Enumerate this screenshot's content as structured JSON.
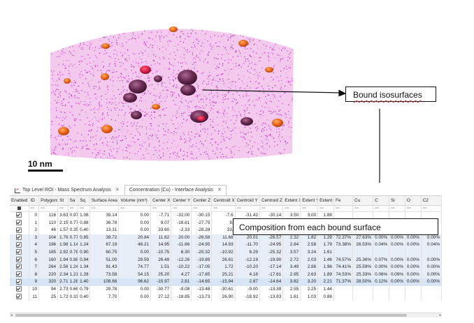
{
  "viz": {
    "scale_label": "10 nm",
    "callout_isosurfaces": "Bound isosurfaces",
    "callout_composition": "Composition from each bound surface",
    "colors": {
      "atoms": "#e04cd0",
      "orange": "#ee6a1a",
      "purple": "#6a2c54",
      "arrow": "#111111"
    }
  },
  "tabs": [
    {
      "label": "Top Level ROI - Mass Spectrum Analysis",
      "icon": "spectrum-chart-icon",
      "close": "✕",
      "active": false
    },
    {
      "label": "Concentration (Cu) - Interface Analysis",
      "icon": "",
      "close": "✕",
      "active": true
    }
  ],
  "table": {
    "columns": [
      "Enabled",
      "ID",
      "Polygons",
      "St",
      "Sa",
      "Sq",
      "Surface Area",
      "Volume (nm³)",
      "Center X",
      "Center Y",
      "Center Z",
      "Centroid X",
      "Centroid Y",
      "Centroid Z",
      "Extent X",
      "Extent Y",
      "Extent Z",
      "Fe",
      "Cu",
      "C",
      "Si",
      "O",
      "C2"
    ],
    "filter_symbol": "==",
    "rows": [
      [
        "",
        "0",
        "116",
        "3.63",
        "0.97",
        "1.08",
        "39.14",
        "0.00",
        "-7.71",
        "-32.00",
        "-30.15",
        "-7.6",
        "-31.42",
        "-30.14",
        "3.50",
        "3.00",
        "1.88",
        "",
        "",
        "",
        "",
        "",
        ""
      ],
      [
        "",
        "1",
        "110",
        "2.15",
        "0.77",
        "0.88",
        "36.78",
        "0.00",
        "9.07",
        "-18.61",
        "-27.75",
        "9.",
        "",
        "",
        "",
        "",
        "",
        "",
        "",
        "",
        "",
        "",
        ""
      ],
      [
        "",
        "2",
        "46",
        "1.57",
        "0.35",
        "0.40",
        "13.31",
        "0.00",
        "33.60",
        "-2.33",
        "-28.28",
        "33.",
        "",
        "",
        "",
        "",
        "",
        "",
        "",
        "",
        "",
        "",
        ""
      ],
      [
        "",
        "3",
        "104",
        "1.79",
        "0.77",
        "0.85",
        "39.72",
        "20.84",
        "11.62",
        "20.00",
        "-26.58",
        "11.68",
        "20.01",
        "-26.57",
        "2.32",
        "1.82",
        "1.29",
        "72.37%",
        "27.63%",
        "0.00%",
        "0.00%",
        "0.00%",
        "0.00%"
      ],
      [
        "",
        "4",
        "196",
        "1.98",
        "1.14",
        "1.24",
        "67.19",
        "48.21",
        "14.95",
        "-11.66",
        "-24.95",
        "14.93",
        "-11.70",
        "-24.95",
        "2.84",
        "2.58",
        "1.79",
        "73.38%",
        "26.53%",
        "0.04%",
        "0.00%",
        "0.00%",
        "0.04%"
      ],
      [
        "",
        "5",
        "185",
        "2.92",
        "0.78",
        "0.90",
        "60.75",
        "0.00",
        "-10.75",
        "6.30",
        "-25.32",
        "-10.92",
        "6.29",
        "-25.32",
        "3.57",
        "3.24",
        "1.61",
        "",
        "",
        "",
        "",
        "",
        ""
      ],
      [
        "",
        "6",
        "160",
        "1.94",
        "0.88",
        "0.94",
        "51.00",
        "29.59",
        "26.49",
        "-12.26",
        "-19.89",
        "26.61",
        "-12.19",
        "-19.90",
        "2.72",
        "2.03",
        "1.46",
        "74.57%",
        "25.36%",
        "0.07%",
        "0.00%",
        "0.00%",
        "0.00%"
      ],
      [
        "",
        "7",
        "264",
        "2.56",
        "1.24",
        "1.34",
        "91.43",
        "74.77",
        "1.51",
        "-10.22",
        "-17.05",
        "1.72",
        "-10.20",
        "-17.14",
        "3.49",
        "2.86",
        "1.96",
        "74.41%",
        "25.59%",
        "0.00%",
        "0.00%",
        "0.00%",
        "0.00%"
      ],
      [
        "",
        "8",
        "220",
        "2.34",
        "1.21",
        "1.28",
        "73.58",
        "54.15",
        "25.20",
        "4.27",
        "-17.65",
        "25.21",
        "4.18",
        "-17.61",
        "2.95",
        "2.63",
        "1.89",
        "74.53%",
        "25.33%",
        "0.06%",
        "0.09%",
        "0.00%",
        "0.00%"
      ],
      [
        "",
        "9",
        "320",
        "2.71",
        "1.28",
        "1.40",
        "108.66",
        "96.62",
        "-15.97",
        "2.81",
        "-14.65",
        "-15.94",
        "2.87",
        "-14.64",
        "3.82",
        "3.20",
        "2.21",
        "71.37%",
        "28.50%",
        "0.12%",
        "0.00%",
        "0.00%",
        "0.00%"
      ],
      [
        "",
        "10",
        "94",
        "2.73",
        "0.66",
        "0.79",
        "29.78",
        "0.00",
        "-30.77",
        "-9.08",
        "-13.48",
        "-30.61",
        "-9.00",
        "-13.39",
        "2.55",
        "2.25",
        "1.44",
        "",
        "",
        "",
        "",
        "",
        ""
      ],
      [
        "",
        "11",
        "25",
        "1.72",
        "0.33",
        "0.40",
        "7.70",
        "0.00",
        "27.12",
        "-18.85",
        "-13.73",
        "26.90",
        "-18.92",
        "-13.83",
        "1.61",
        "1.03",
        "0.88",
        "",
        "",
        "",
        "",
        "",
        ""
      ]
    ],
    "enabled": [
      true,
      true,
      true,
      true,
      true,
      true,
      true,
      true,
      true,
      true,
      true,
      true
    ]
  }
}
